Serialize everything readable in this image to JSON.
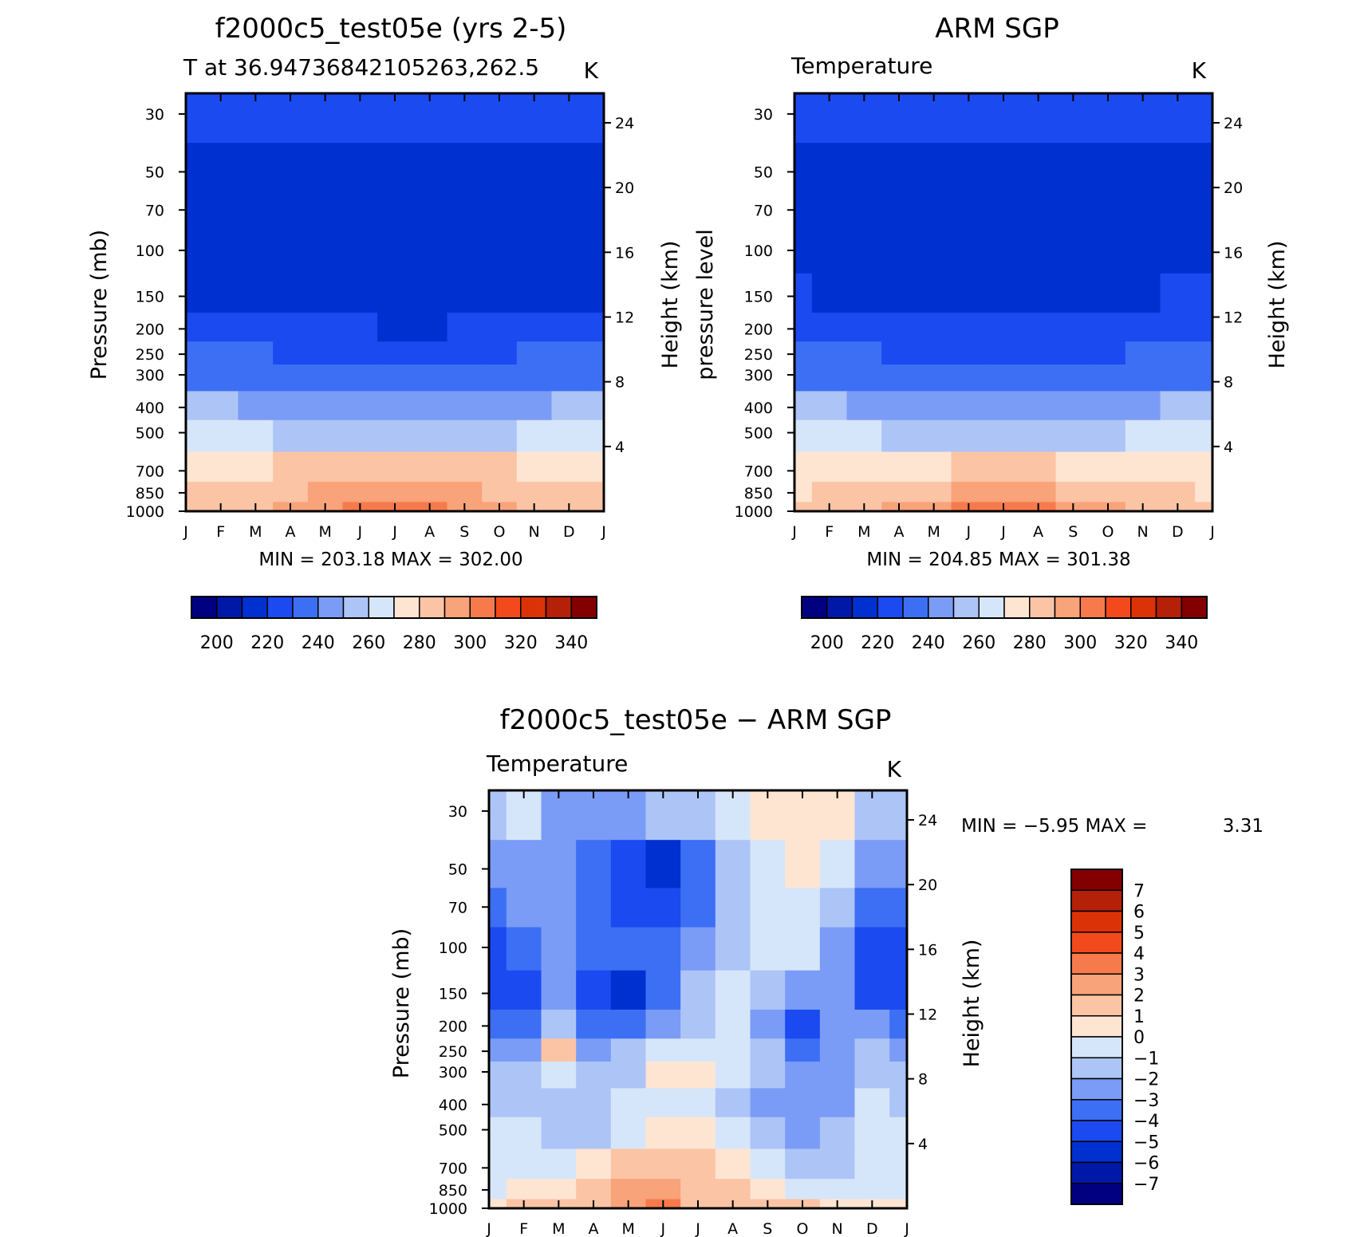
{
  "chart_data": [
    {
      "type": "heatmap",
      "title": "f2000c5_test05e (yrs 2-5)",
      "left_label": "T at 36.94736842105263,262.5",
      "right_label": "K",
      "ylabel": "Pressure (mb)",
      "y2label": "Height (km)",
      "x_ticks": [
        "J",
        "F",
        "M",
        "A",
        "M",
        "J",
        "J",
        "A",
        "S",
        "O",
        "N",
        "D",
        "J"
      ],
      "y_ticks": [
        "30",
        "50",
        "70",
        "100",
        "150",
        "200",
        "250",
        "300",
        "400",
        "500",
        "700",
        "850",
        "1000"
      ],
      "y2_ticks": [
        "24",
        "20",
        "16",
        "12",
        "8",
        "4"
      ],
      "y_scale": "log",
      "min_max": "MIN =  203.18 MAX =  302.00",
      "colorbar_labels": [
        "200",
        "220",
        "240",
        "260",
        "280",
        "300",
        "320",
        "340"
      ],
      "z_by_level": [
        [
          215,
          215,
          215,
          215,
          215,
          215,
          215,
          215,
          215,
          215,
          215,
          215,
          215
        ],
        [
          208,
          209,
          209,
          209,
          210,
          210,
          210,
          210,
          210,
          210,
          209,
          209,
          208
        ],
        [
          206,
          207,
          207,
          207,
          207,
          207,
          207,
          207,
          207,
          207,
          207,
          207,
          206
        ],
        [
          208,
          208,
          208,
          208,
          207,
          207,
          207,
          207,
          207,
          207,
          207,
          207,
          208
        ],
        [
          212,
          211,
          210,
          210,
          208,
          208,
          208,
          208,
          208,
          208,
          209,
          209,
          212
        ],
        [
          218,
          218,
          217,
          216,
          215,
          215,
          214,
          214,
          215,
          216,
          217,
          218,
          218
        ],
        [
          226,
          226,
          225,
          224,
          223,
          222,
          221,
          221,
          222,
          223,
          225,
          226,
          226
        ],
        [
          233,
          233,
          232,
          231,
          230,
          229,
          228,
          228,
          229,
          230,
          232,
          233,
          233
        ],
        [
          245,
          245,
          244,
          243,
          241,
          240,
          239,
          239,
          240,
          242,
          244,
          245,
          245
        ],
        [
          256,
          256,
          255,
          253,
          251,
          250,
          249,
          249,
          250,
          252,
          255,
          256,
          256
        ],
        [
          270,
          271,
          272,
          275,
          277,
          279,
          279,
          278,
          277,
          275,
          272,
          271,
          270
        ],
        [
          276,
          277,
          279,
          283,
          286,
          288,
          289,
          288,
          286,
          283,
          279,
          277,
          276
        ],
        [
          280,
          281,
          283,
          287,
          292,
          296,
          301,
          297,
          292,
          287,
          283,
          281,
          280
        ]
      ]
    },
    {
      "type": "heatmap",
      "title": "ARM SGP",
      "left_label": "Temperature",
      "right_label": "K",
      "ylabel": "pressure level",
      "y2label": "Height (km)",
      "x_ticks": [
        "J",
        "F",
        "M",
        "A",
        "M",
        "J",
        "J",
        "A",
        "S",
        "O",
        "N",
        "D",
        "J"
      ],
      "y_ticks": [
        "30",
        "50",
        "70",
        "100",
        "150",
        "200",
        "250",
        "300",
        "400",
        "500",
        "700",
        "850",
        "1000"
      ],
      "y2_ticks": [
        "24",
        "20",
        "16",
        "12",
        "8",
        "4"
      ],
      "y_scale": "log",
      "min_max": "MIN =  204.85 MAX =  301.38",
      "colorbar_labels": [
        "200",
        "220",
        "240",
        "260",
        "280",
        "300",
        "320",
        "340"
      ],
      "z_by_level": [
        [
          215,
          215,
          215,
          215,
          215,
          215,
          215,
          215,
          215,
          215,
          215,
          215,
          215
        ],
        [
          211,
          211,
          211,
          211,
          211,
          211,
          211,
          211,
          211,
          211,
          211,
          211,
          211
        ],
        [
          208,
          208,
          209,
          209,
          209,
          209,
          209,
          209,
          209,
          209,
          209,
          208,
          208
        ],
        [
          212,
          211,
          210,
          209,
          208,
          208,
          208,
          208,
          208,
          208,
          209,
          211,
          212
        ],
        [
          215,
          214,
          214,
          213,
          212,
          211,
          210,
          211,
          212,
          213,
          214,
          215,
          215
        ],
        [
          219,
          219,
          218,
          218,
          217,
          216,
          216,
          216,
          217,
          218,
          219,
          219,
          219
        ],
        [
          226,
          226,
          225,
          224,
          223,
          222,
          221,
          221,
          222,
          223,
          225,
          226,
          226
        ],
        [
          233,
          233,
          232,
          231,
          230,
          229,
          228,
          228,
          229,
          230,
          232,
          233,
          233
        ],
        [
          245,
          245,
          244,
          243,
          241,
          240,
          239,
          239,
          240,
          242,
          244,
          245,
          245
        ],
        [
          256,
          256,
          255,
          253,
          251,
          250,
          249,
          249,
          250,
          252,
          255,
          256,
          256
        ],
        [
          268,
          269,
          270,
          272,
          274,
          276,
          277,
          276,
          274,
          272,
          270,
          269,
          268
        ],
        [
          274,
          275,
          277,
          281,
          284,
          287,
          289,
          287,
          284,
          281,
          277,
          275,
          274
        ],
        [
          278,
          279,
          282,
          287,
          292,
          296,
          300,
          296,
          292,
          287,
          282,
          279,
          278
        ]
      ]
    },
    {
      "type": "heatmap",
      "title": "f2000c5_test05e − ARM SGP",
      "left_label": "Temperature",
      "right_label": "K",
      "ylabel": "Pressure (mb)",
      "y2label": "Height (km)",
      "x_ticks": [
        "J",
        "F",
        "M",
        "A",
        "M",
        "J",
        "J",
        "A",
        "S",
        "O",
        "N",
        "D",
        "J"
      ],
      "y_ticks": [
        "30",
        "50",
        "70",
        "100",
        "150",
        "200",
        "250",
        "300",
        "400",
        "500",
        "700",
        "850",
        "1000"
      ],
      "y2_ticks": [
        "24",
        "20",
        "16",
        "12",
        "8",
        "4"
      ],
      "y_scale": "log",
      "min_max_min": "MIN =    −5.95 MAX =",
      "min_max_max": "3.31",
      "colorbar_labels": [
        "7",
        "6",
        "5",
        "4",
        "3",
        "2",
        "1",
        "0",
        "−1",
        "−2",
        "−3",
        "−4",
        "−5",
        "−6",
        "−7"
      ],
      "z_by_level": [
        [
          -1.5,
          -1.0,
          -2.5,
          -3.0,
          -2.5,
          -2.0,
          -1.5,
          -0.5,
          0.5,
          0.8,
          0.5,
          -1.5,
          -1.5
        ],
        [
          -3.0,
          -2.5,
          -3.0,
          -4.0,
          -5.0,
          -5.2,
          -3.5,
          -2.0,
          -0.5,
          0.2,
          -0.5,
          -2.5,
          -3.0
        ],
        [
          -3.2,
          -3.0,
          -3.0,
          -3.5,
          -4.5,
          -5.0,
          -3.5,
          -2.0,
          -1.0,
          -0.5,
          -1.5,
          -3.5,
          -3.2
        ],
        [
          -4.2,
          -3.5,
          -2.5,
          -3.5,
          -4.0,
          -3.5,
          -2.5,
          -1.5,
          -1.0,
          -1.0,
          -2.5,
          -4.5,
          -4.2
        ],
        [
          -5.0,
          -4.5,
          -2.5,
          -4.2,
          -5.2,
          -3.5,
          -2.0,
          -1.0,
          -1.5,
          -2.5,
          -3.0,
          -4.5,
          -5.0
        ],
        [
          -4.0,
          -3.5,
          -1.5,
          -3.5,
          -3.5,
          -2.5,
          -1.5,
          -1.0,
          -2.5,
          -4.5,
          -3.0,
          -2.5,
          -4.0
        ],
        [
          -2.5,
          -2.5,
          1.0,
          -2.5,
          -2.0,
          -1.0,
          -0.5,
          -0.5,
          -2.0,
          -3.5,
          -2.5,
          -2.0,
          -2.5
        ],
        [
          -2.0,
          -2.0,
          -0.5,
          -2.0,
          -1.5,
          0.5,
          0.2,
          -0.5,
          -1.5,
          -3.0,
          -2.5,
          -1.5,
          -2.0
        ],
        [
          -1.5,
          -1.5,
          -2.0,
          -1.8,
          -1.0,
          -0.5,
          -1.0,
          -1.5,
          -2.5,
          -3.0,
          -2.5,
          -1.0,
          -1.5
        ],
        [
          -1.0,
          -1.0,
          -2.0,
          -1.5,
          -0.5,
          0.5,
          0.5,
          -0.5,
          -1.5,
          -2.5,
          -2.0,
          -1.0,
          -1.0
        ],
        [
          -1.0,
          -0.5,
          -1.0,
          0.5,
          1.5,
          1.5,
          1.0,
          0.5,
          -0.5,
          -1.5,
          -1.5,
          -1.0,
          -1.0
        ],
        [
          -0.5,
          0.2,
          0.5,
          1.0,
          2.0,
          2.5,
          1.5,
          1.0,
          0.5,
          -0.5,
          -0.5,
          -0.5,
          -0.5
        ],
        [
          0.5,
          1.0,
          1.5,
          1.5,
          2.5,
          3.0,
          1.5,
          1.0,
          1.5,
          1.0,
          0.5,
          0.2,
          0.5
        ]
      ]
    }
  ],
  "colors": {
    "abs_fills": [
      "#000080",
      "#0018a8",
      "#0030d0",
      "#1a4af0",
      "#3d6ff5",
      "#7a9cf6",
      "#adc4f7",
      "#d6e6fa",
      "#fde5d2",
      "#fbc4a5",
      "#f8a37a",
      "#f77a4d",
      "#f24a1c",
      "#dc3208",
      "#b52008",
      "#820000"
    ],
    "diff_fills": [
      "#000080",
      "#0018a8",
      "#0030d0",
      "#1a4af0",
      "#3d6ff5",
      "#7a9cf6",
      "#adc4f7",
      "#d6e6fa",
      "#fde5d2",
      "#fbc4a5",
      "#f8a37a",
      "#f77a4d",
      "#f24a1c",
      "#dc3208",
      "#b52008",
      "#820000"
    ]
  }
}
